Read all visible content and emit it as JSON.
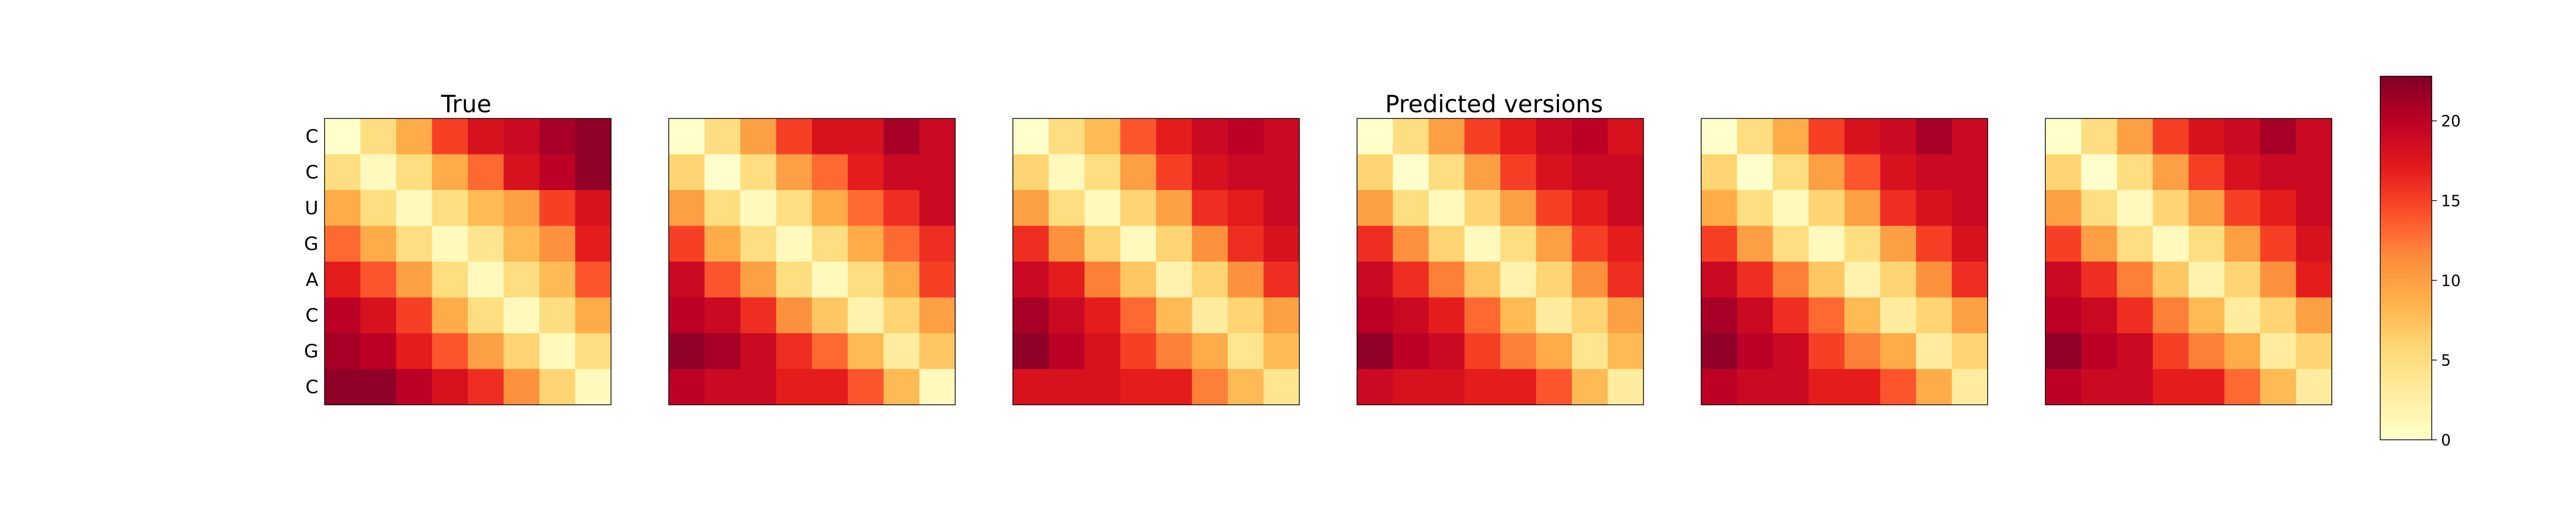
{
  "chart_data": {
    "type": "heatmap",
    "colormap": "YlOrRd",
    "vmin": 0,
    "vmax": 22.8,
    "colorbar_ticks": [
      "0",
      "5",
      "10",
      "15",
      "20"
    ],
    "row_labels": [
      "C",
      "C",
      "U",
      "G",
      "A",
      "C",
      "G",
      "C"
    ],
    "titles": [
      "True",
      "Predicted versions"
    ],
    "panels": [
      [
        [
          0,
          5,
          9,
          15,
          18,
          19,
          21,
          22
        ],
        [
          5,
          1,
          5,
          9,
          13,
          18,
          20,
          22
        ],
        [
          9,
          5,
          1,
          5,
          8,
          10,
          15,
          18
        ],
        [
          13,
          9,
          5,
          1,
          4,
          8,
          11,
          17
        ],
        [
          17,
          14,
          10,
          5,
          1,
          5,
          8,
          14
        ],
        [
          20,
          18,
          15,
          9,
          5,
          1,
          5,
          9
        ],
        [
          21,
          20,
          17,
          14,
          10,
          6,
          1,
          5
        ],
        [
          22,
          22,
          20,
          18,
          16,
          11,
          6,
          1
        ]
      ],
      [
        [
          0,
          5,
          10,
          15,
          18,
          18,
          21,
          19
        ],
        [
          6,
          0,
          5,
          10,
          13,
          17,
          19,
          19
        ],
        [
          10,
          5,
          1,
          5,
          9,
          13,
          16,
          19
        ],
        [
          15,
          9,
          5,
          1,
          5,
          9,
          13,
          16
        ],
        [
          19,
          14,
          10,
          5,
          1,
          5,
          9,
          15
        ],
        [
          20,
          19,
          16,
          11,
          7,
          2,
          6,
          10
        ],
        [
          22,
          21,
          19,
          16,
          13,
          8,
          3,
          7
        ],
        [
          20,
          19,
          19,
          17,
          17,
          14,
          8,
          1
        ]
      ],
      [
        [
          0,
          5,
          8,
          14,
          17,
          19,
          20,
          19
        ],
        [
          6,
          1,
          5,
          10,
          15,
          18,
          19,
          19
        ],
        [
          10,
          5,
          1,
          6,
          10,
          16,
          17,
          19
        ],
        [
          16,
          11,
          6,
          1,
          6,
          11,
          16,
          18
        ],
        [
          19,
          17,
          12,
          7,
          2,
          6,
          11,
          16
        ],
        [
          21,
          19,
          17,
          13,
          8,
          3,
          6,
          10
        ],
        [
          22,
          20,
          18,
          15,
          12,
          9,
          4,
          8
        ],
        [
          18,
          18,
          18,
          17,
          17,
          12,
          8,
          4
        ]
      ],
      [
        [
          0,
          5,
          10,
          15,
          17,
          19,
          20,
          18
        ],
        [
          6,
          0,
          5,
          10,
          15,
          18,
          19,
          19
        ],
        [
          10,
          5,
          1,
          6,
          10,
          15,
          17,
          19
        ],
        [
          16,
          11,
          6,
          1,
          5,
          10,
          15,
          17
        ],
        [
          19,
          16,
          12,
          7,
          2,
          6,
          11,
          16
        ],
        [
          20,
          19,
          17,
          13,
          8,
          3,
          6,
          10
        ],
        [
          22,
          20,
          19,
          15,
          12,
          9,
          4,
          8
        ],
        [
          19,
          18,
          18,
          17,
          17,
          14,
          8,
          3
        ]
      ],
      [
        [
          0,
          5,
          9,
          15,
          18,
          19,
          21,
          19
        ],
        [
          6,
          0,
          5,
          10,
          14,
          18,
          19,
          19
        ],
        [
          9,
          5,
          1,
          6,
          10,
          16,
          18,
          19
        ],
        [
          15,
          10,
          5,
          1,
          5,
          10,
          15,
          18
        ],
        [
          19,
          16,
          12,
          7,
          2,
          6,
          11,
          16
        ],
        [
          21,
          19,
          16,
          13,
          8,
          3,
          6,
          10
        ],
        [
          22,
          20,
          19,
          15,
          12,
          9,
          3,
          6
        ],
        [
          20,
          19,
          19,
          17,
          17,
          14,
          9,
          3
        ]
      ],
      [
        [
          0,
          5,
          10,
          15,
          18,
          19,
          21,
          19
        ],
        [
          6,
          0,
          5,
          10,
          15,
          18,
          19,
          19
        ],
        [
          10,
          5,
          1,
          6,
          10,
          15,
          17,
          19
        ],
        [
          15,
          10,
          5,
          1,
          5,
          10,
          15,
          18
        ],
        [
          19,
          16,
          12,
          7,
          2,
          6,
          11,
          17
        ],
        [
          20,
          19,
          16,
          12,
          8,
          3,
          6,
          10
        ],
        [
          22,
          20,
          19,
          15,
          12,
          9,
          3,
          6
        ],
        [
          20,
          19,
          19,
          17,
          17,
          13,
          8,
          3
        ]
      ]
    ]
  }
}
